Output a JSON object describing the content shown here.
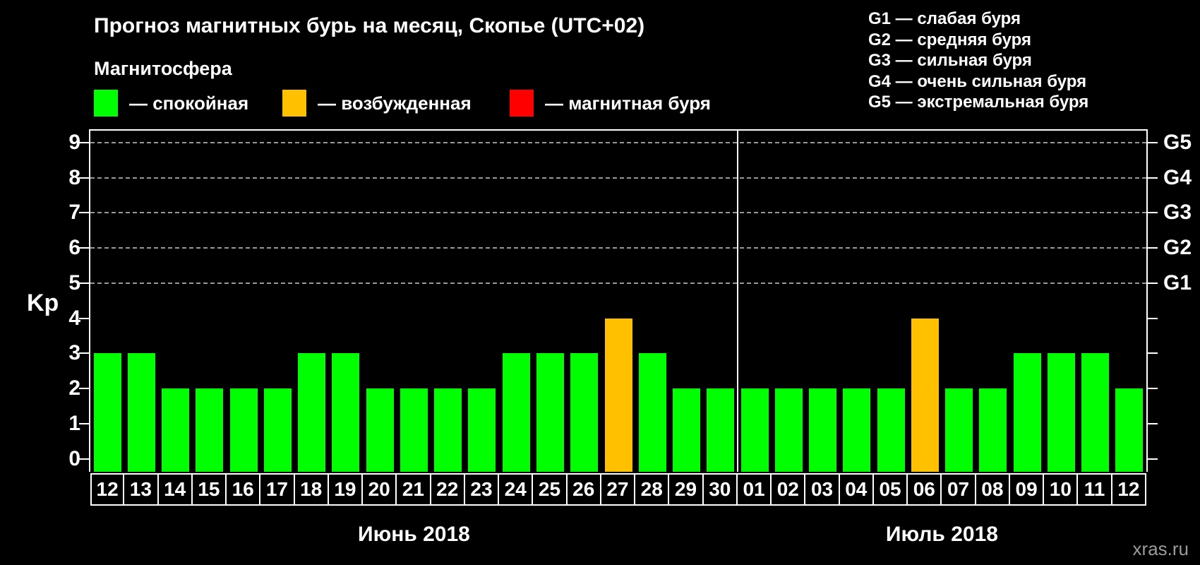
{
  "title": "Прогноз магнитных бурь на месяц, Скопье (UTC+02)",
  "legend": {
    "title": "Магнитосфера",
    "items": [
      {
        "key": "quiet",
        "label": "— спокойная",
        "color": "#00ff00"
      },
      {
        "key": "excited",
        "label": "— возбужденная",
        "color": "#ffc000"
      },
      {
        "key": "storm",
        "label": "— магнитная буря",
        "color": "#ff0000"
      }
    ]
  },
  "g_scale": [
    "G1 — слабая буря",
    "G2 — средняя буря",
    "G3 — сильная буря",
    "G4 — очень сильная буря",
    "G5 — экстремальная буря"
  ],
  "watermark": "xras.ru",
  "chart_data": {
    "type": "bar",
    "title": "Прогноз магнитных бурь на месяц, Скопье (UTC+02)",
    "xlabel": "",
    "ylabel": "Kp",
    "ylim": [
      0,
      9
    ],
    "y_ticks": [
      0,
      1,
      2,
      3,
      4,
      5,
      6,
      7,
      8,
      9
    ],
    "grid_levels": [
      5,
      6,
      7,
      8,
      9
    ],
    "grid_style": "dashed",
    "legend_position": "top",
    "right_axis_labels": [
      {
        "value": 5,
        "label": "G1"
      },
      {
        "value": 6,
        "label": "G2"
      },
      {
        "value": 7,
        "label": "G3"
      },
      {
        "value": 8,
        "label": "G4"
      },
      {
        "value": 9,
        "label": "G5"
      }
    ],
    "bar_colors": {
      "quiet": "#00ff00",
      "excited": "#ffc000",
      "storm": "#ff0000"
    },
    "months": [
      {
        "label": "Июнь 2018",
        "days": [
          "12",
          "13",
          "14",
          "15",
          "16",
          "17",
          "18",
          "19",
          "20",
          "21",
          "22",
          "23",
          "24",
          "25",
          "26",
          "27",
          "28",
          "29",
          "30"
        ],
        "values": [
          3,
          3,
          2,
          2,
          2,
          2,
          3,
          3,
          2,
          2,
          2,
          2,
          3,
          3,
          3,
          4,
          3,
          2,
          2
        ],
        "states": [
          "quiet",
          "quiet",
          "quiet",
          "quiet",
          "quiet",
          "quiet",
          "quiet",
          "quiet",
          "quiet",
          "quiet",
          "quiet",
          "quiet",
          "quiet",
          "quiet",
          "quiet",
          "excited",
          "quiet",
          "quiet",
          "quiet"
        ]
      },
      {
        "label": "Июль 2018",
        "days": [
          "01",
          "02",
          "03",
          "04",
          "05",
          "06",
          "07",
          "08",
          "09",
          "10",
          "11",
          "12"
        ],
        "values": [
          2,
          2,
          2,
          2,
          2,
          4,
          2,
          2,
          3,
          3,
          3,
          2
        ],
        "states": [
          "quiet",
          "quiet",
          "quiet",
          "quiet",
          "quiet",
          "excited",
          "quiet",
          "quiet",
          "quiet",
          "quiet",
          "quiet",
          "quiet"
        ]
      }
    ]
  }
}
